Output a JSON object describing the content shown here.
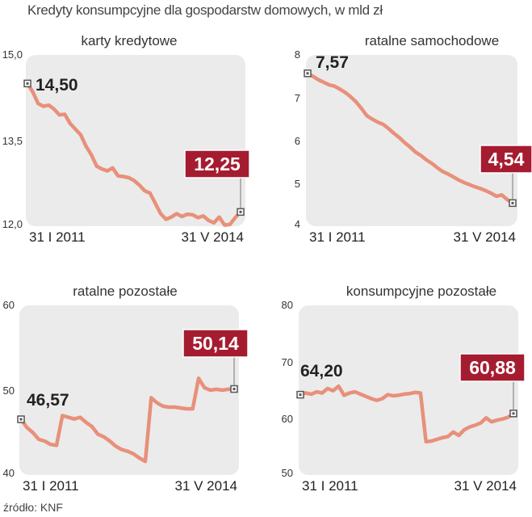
{
  "title": "Kredyty konsumpcyjne dla gospodarstw domowych, w mld zł",
  "source": "źródło: KNF",
  "colors": {
    "line": "#e8907a",
    "panel": "#ebebeb",
    "highlight": "#a51c30",
    "marker": "#555555"
  },
  "chart_data": [
    {
      "type": "line",
      "title": "karty kredytowe",
      "ylim": [
        12.0,
        15.0
      ],
      "y_ticks": [
        "15,0",
        "13,5",
        "12,0"
      ],
      "y_tick_values": [
        15.0,
        13.5,
        12.0
      ],
      "x_labels": [
        "31 I 2011",
        "31 V 2014"
      ],
      "start_label": "14,50",
      "end_label": "12,25",
      "values": [
        14.5,
        14.35,
        14.15,
        14.1,
        14.12,
        14.05,
        13.95,
        13.96,
        13.8,
        13.7,
        13.6,
        13.4,
        13.25,
        13.05,
        13.0,
        12.97,
        13.02,
        12.88,
        12.87,
        12.85,
        12.8,
        12.72,
        12.62,
        12.58,
        12.4,
        12.22,
        12.12,
        12.16,
        12.22,
        12.17,
        12.21,
        12.2,
        12.15,
        12.18,
        12.1,
        12.06,
        12.16,
        12.02,
        12.03,
        12.15,
        12.25
      ]
    },
    {
      "type": "line",
      "title": "ratalne samochodowe",
      "ylim": [
        4,
        8
      ],
      "y_ticks": [
        "8",
        "7",
        "6",
        "5",
        "4"
      ],
      "y_tick_values": [
        8,
        7,
        6,
        5,
        4
      ],
      "x_labels": [
        "31 I 2011",
        "31 V 2014"
      ],
      "start_label": "7,57",
      "end_label": "4,54",
      "values": [
        7.57,
        7.5,
        7.42,
        7.36,
        7.3,
        7.27,
        7.2,
        7.12,
        7.02,
        6.9,
        6.75,
        6.58,
        6.5,
        6.43,
        6.38,
        6.28,
        6.17,
        6.07,
        5.95,
        5.85,
        5.73,
        5.65,
        5.55,
        5.47,
        5.37,
        5.28,
        5.22,
        5.15,
        5.08,
        5.02,
        4.97,
        4.92,
        4.88,
        4.83,
        4.77,
        4.7,
        4.73,
        4.62,
        4.54
      ]
    },
    {
      "type": "line",
      "title": "ratalne pozostałe",
      "ylim": [
        40,
        60
      ],
      "y_ticks": [
        "60",
        "50",
        "40"
      ],
      "y_tick_values": [
        60,
        50,
        40
      ],
      "x_labels": [
        "31 I 2011",
        "31 V 2014"
      ],
      "start_label": "46,57",
      "end_label": "50,14",
      "values": [
        46.57,
        45.6,
        45.0,
        44.2,
        44.0,
        43.6,
        43.5,
        47.0,
        46.8,
        46.6,
        46.8,
        46.2,
        45.7,
        44.8,
        44.5,
        44.0,
        43.4,
        43.0,
        42.8,
        42.5,
        42.0,
        41.6,
        49.1,
        48.5,
        48.1,
        48.0,
        48.0,
        47.9,
        47.8,
        47.8,
        51.4,
        50.3,
        50.0,
        50.1,
        50.0,
        50.1,
        50.14
      ]
    },
    {
      "type": "line",
      "title": "konsumpcyjne pozostałe",
      "ylim": [
        50,
        80
      ],
      "y_ticks": [
        "80",
        "70",
        "60",
        "50"
      ],
      "y_tick_values": [
        80,
        70,
        60,
        50
      ],
      "x_labels": [
        "31 I 2011",
        "31 V 2014"
      ],
      "start_label": "64,20",
      "end_label": "60,88",
      "values": [
        64.2,
        64.5,
        64.3,
        64.7,
        64.5,
        65.3,
        64.9,
        65.7,
        64.1,
        64.5,
        64.7,
        64.3,
        63.9,
        63.5,
        63.2,
        63.5,
        64.2,
        64.0,
        64.1,
        64.3,
        64.4,
        64.6,
        64.5,
        55.9,
        56.0,
        56.3,
        56.6,
        56.8,
        57.6,
        57.0,
        58.0,
        58.5,
        58.8,
        59.2,
        60.1,
        59.4,
        59.7,
        59.9,
        60.2,
        60.88
      ]
    }
  ]
}
